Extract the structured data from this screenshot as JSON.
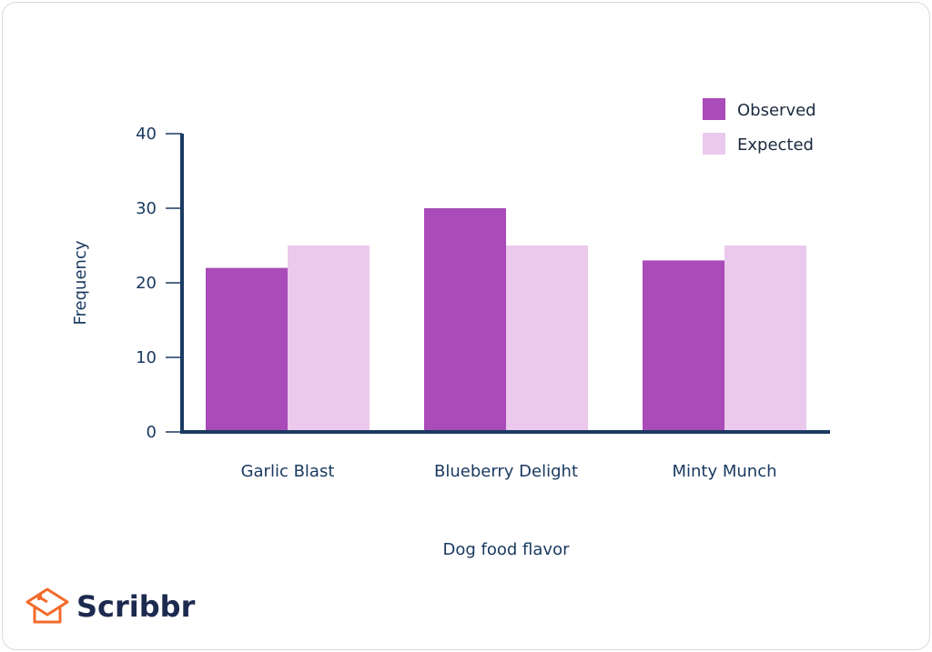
{
  "chart_data": {
    "type": "bar",
    "title": "",
    "xlabel": "Dog food flavor",
    "ylabel": "Frequency",
    "ylim": [
      0,
      40
    ],
    "yticks": [
      0,
      10,
      20,
      30,
      40
    ],
    "categories": [
      "Garlic Blast",
      "Blueberry Delight",
      "Minty Munch"
    ],
    "series": [
      {
        "name": "Observed",
        "values": [
          22,
          30,
          23
        ],
        "color": "#a94bb8"
      },
      {
        "name": "Expected",
        "values": [
          25,
          25,
          25
        ],
        "color": "#ebc9ec"
      }
    ],
    "legend": "top-right",
    "grid": false
  },
  "brand": {
    "name": "Scribbr",
    "logo_color": "#f26b2a",
    "text_color": "#1d2a4f"
  },
  "axis_color": "#1b3a61"
}
